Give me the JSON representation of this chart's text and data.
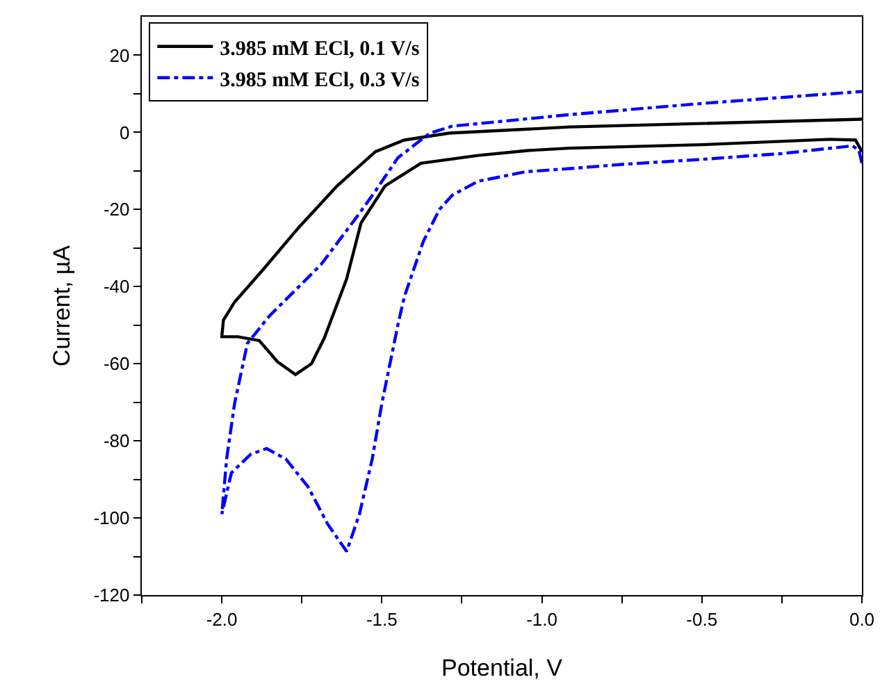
{
  "chart_data": {
    "type": "line",
    "xlabel": "Potential, V",
    "ylabel": "Current, µA",
    "xlim": [
      -2.25,
      0
    ],
    "ylim": [
      -120,
      30
    ],
    "xticks": [
      {
        "value": -2.25,
        "label": null
      },
      {
        "value": -2,
        "label": "-2.0"
      },
      {
        "value": -1.75,
        "label": null
      },
      {
        "value": -1.5,
        "label": "-1.5"
      },
      {
        "value": -1.25,
        "label": null
      },
      {
        "value": -1,
        "label": "-1.0"
      },
      {
        "value": -0.75,
        "label": null
      },
      {
        "value": -0.5,
        "label": "-0.5"
      },
      {
        "value": -0.25,
        "label": null
      },
      {
        "value": 0,
        "label": "0.0"
      }
    ],
    "yticks": [
      -120,
      {
        "value": -110,
        "label": null
      },
      -100,
      {
        "value": -90,
        "label": null
      },
      -80,
      {
        "value": -70,
        "label": null
      },
      -60,
      {
        "value": -50,
        "label": null
      },
      -40,
      {
        "value": -30,
        "label": null
      },
      -20,
      {
        "value": -10,
        "label": null
      },
      0,
      {
        "value": 10,
        "label": null
      },
      20
    ],
    "grid": false,
    "legend": "top left",
    "marker": "none",
    "series": [
      {
        "name": "3.985 mM ECl, 0.1 V/s",
        "color": "#000000",
        "line_style": "solid",
        "x": [
          0,
          -0.02,
          -0.1,
          -0.5,
          -0.913,
          -1.043,
          -1.2,
          -1.378,
          -1.49,
          -1.565,
          -1.61,
          -1.68,
          -1.72,
          -1.77,
          -1.826,
          -1.883,
          -1.95,
          -2.0,
          -1.995,
          -1.96,
          -1.87,
          -1.76,
          -1.64,
          -1.52,
          -1.43,
          -1.29,
          -0.913,
          -0.5,
          0
        ],
        "values": [
          -5,
          -2,
          -1.8,
          -3.2,
          -4.1,
          -4.7,
          -6,
          -8,
          -13.9,
          -23.5,
          -38,
          -53.4,
          -60,
          -62.8,
          -59.5,
          -54,
          -53,
          -53,
          -48.7,
          -44,
          -35.5,
          -24.7,
          -13.9,
          -5,
          -2,
          -0.2,
          1.4,
          2.3,
          3.4
        ]
      },
      {
        "name": "3.985 mM ECl, 0.3 V/s",
        "color": "#0000ff",
        "line_style": "dashdot",
        "x": [
          0,
          -0.01,
          -0.03,
          -0.25,
          -0.5,
          -0.75,
          -0.913,
          -1.05,
          -1.2,
          -1.28,
          -1.32,
          -1.37,
          -1.43,
          -1.45,
          -1.5,
          -1.53,
          -1.57,
          -1.61,
          -1.67,
          -1.73,
          -1.8,
          -1.86,
          -1.91,
          -1.97,
          -2.0,
          -1.985,
          -1.96,
          -1.92,
          -1.85,
          -1.69,
          -1.57,
          -1.52,
          -1.45,
          -1.35,
          -1.28,
          -0.913,
          -0.5,
          0
        ],
        "values": [
          -8,
          -4.5,
          -3.5,
          -5.5,
          -7,
          -8.3,
          -9.4,
          -10.2,
          -12.7,
          -16.3,
          -20,
          -28.2,
          -42.7,
          -50,
          -70.3,
          -84.7,
          -99,
          -108.7,
          -101.5,
          -92,
          -84.7,
          -82,
          -83.5,
          -88.3,
          -99,
          -84.7,
          -70.3,
          -54.7,
          -47.5,
          -34.3,
          -21,
          -15.2,
          -6.6,
          -0.2,
          1.6,
          4.6,
          7.5,
          10.6
        ]
      }
    ]
  }
}
